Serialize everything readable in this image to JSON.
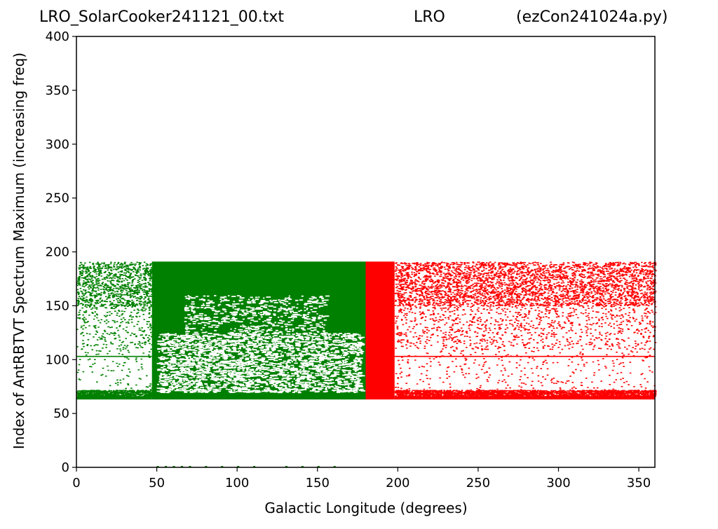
{
  "title": {
    "left": "LRO_SolarCooker241121_00.txt",
    "center": "LRO",
    "right": "(ezCon241024a.py)"
  },
  "chart_data": {
    "type": "scatter",
    "xlabel": "Galactic Longitude (degrees)",
    "ylabel": "Index of AntRBTVT Spectrum Maximum (increasing freq)",
    "xlim": [
      0,
      360
    ],
    "ylim": [
      0,
      400
    ],
    "xticks": [
      0,
      50,
      100,
      150,
      200,
      250,
      300,
      350
    ],
    "yticks": [
      0,
      50,
      100,
      150,
      200,
      250,
      300,
      350,
      400
    ],
    "grid": false,
    "colors": {
      "green": "#008000",
      "red": "#ff0000"
    },
    "regions": [
      {
        "color": "green",
        "x": [
          0,
          47
        ],
        "y_min": 63,
        "y_max": 191,
        "fill": "sparse",
        "dense_bottom_band": [
          63,
          72
        ],
        "line_y": 103
      },
      {
        "color": "green",
        "x": [
          47,
          180
        ],
        "y_min": 63,
        "y_max": 191,
        "fill": "dense_with_sparse_middle",
        "sparse_y": [
          70,
          125
        ]
      },
      {
        "color": "red",
        "x": [
          180,
          198
        ],
        "y_min": 63,
        "y_max": 191,
        "fill": "solid"
      },
      {
        "color": "red",
        "x": [
          198,
          360
        ],
        "y_min": 63,
        "y_max": 191,
        "fill": "sparse",
        "dense_bottom_band": [
          63,
          72
        ],
        "line_y": 103
      }
    ],
    "zero_marks_x": [
      50,
      55,
      60,
      65,
      70,
      80,
      90,
      100,
      110,
      130,
      140,
      150,
      160
    ]
  }
}
